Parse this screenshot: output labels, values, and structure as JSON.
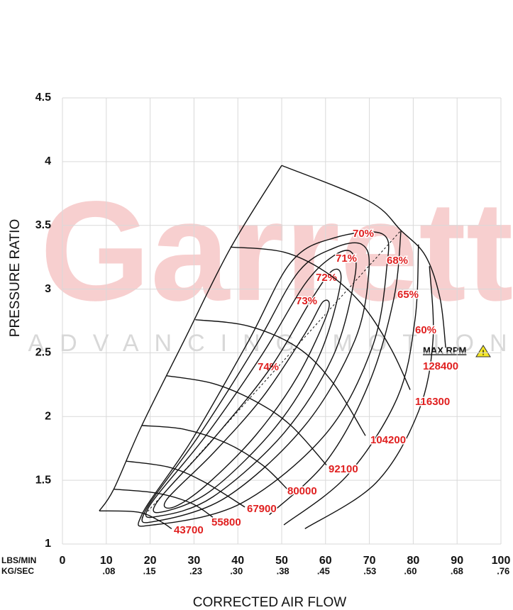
{
  "watermark": {
    "brand": "Garrett",
    "tagline": "ADVANCING MOTION"
  },
  "chart_data": {
    "type": "compressor_map",
    "x_label": "CORRECTED AIR FLOW",
    "y_label": "PRESSURE RATIO",
    "x_unit_label": "LBS/MIN",
    "x2_unit_label": "KG/SEC",
    "max_rpm_label": "MAX RPM",
    "xlim": [
      0,
      100
    ],
    "xticks": [
      0,
      10,
      20,
      30,
      40,
      50,
      60,
      70,
      80,
      90,
      100
    ],
    "x2lim": [
      0,
      0.756
    ],
    "x2ticks": [
      {
        "value": 0.08,
        "label": ".08"
      },
      {
        "value": 0.15,
        "label": ".15"
      },
      {
        "value": 0.23,
        "label": ".23"
      },
      {
        "value": 0.3,
        "label": ".30"
      },
      {
        "value": 0.38,
        "label": ".38"
      },
      {
        "value": 0.45,
        "label": ".45"
      },
      {
        "value": 0.53,
        "label": ".53"
      },
      {
        "value": 0.6,
        "label": ".60"
      },
      {
        "value": 0.68,
        "label": ".68"
      },
      {
        "value": 0.76,
        "label": ".76"
      }
    ],
    "ylim": [
      1,
      4.5
    ],
    "yticks": [
      1,
      1.5,
      2,
      2.5,
      3,
      3.5,
      4,
      4.5
    ],
    "grid": true,
    "line_color": "#111111",
    "label_color": "#e02020",
    "surge_line": {
      "x": [
        8.4,
        11.7,
        18.1,
        27.8,
        38.3,
        50.0
      ],
      "values": [
        1.26,
        1.43,
        1.93,
        2.6,
        3.32,
        3.97
      ]
    },
    "speed_lines": [
      {
        "name": "43700",
        "x": [
          8.4,
          17.3,
          22.2,
          24.9
        ],
        "values": [
          1.26,
          1.25,
          1.18,
          1.12
        ]
      },
      {
        "name": "55800",
        "x": [
          11.7,
          21.4,
          29.4,
          34.3
        ],
        "values": [
          1.43,
          1.4,
          1.32,
          1.21
        ]
      },
      {
        "name": "67900",
        "x": [
          14.6,
          24.6,
          32.7,
          41.6
        ],
        "values": [
          1.65,
          1.6,
          1.48,
          1.29
        ]
      },
      {
        "name": "80000",
        "x": [
          18.1,
          27.8,
          37.5,
          45.6,
          51.3
        ],
        "values": [
          1.93,
          1.9,
          1.79,
          1.62,
          1.43
        ]
      },
      {
        "name": "92100",
        "x": [
          23.8,
          34.3,
          44.0,
          52.1,
          60.2
        ],
        "values": [
          2.32,
          2.26,
          2.12,
          1.93,
          1.62
        ]
      },
      {
        "name": "104200",
        "x": [
          30.3,
          42.4,
          53.7,
          61.8,
          69.1
        ],
        "values": [
          2.76,
          2.71,
          2.54,
          2.26,
          1.85
        ]
      },
      {
        "name": "116300",
        "x": [
          38.3,
          50.5,
          60.2,
          68.3,
          74.8,
          79.3
        ],
        "values": [
          3.33,
          3.29,
          3.13,
          2.88,
          2.54,
          2.21
        ]
      },
      {
        "name": "128400",
        "x": [
          50.0,
          69.9,
          77.2,
          82.8,
          86.1,
          87.4
        ],
        "values": [
          3.97,
          3.69,
          3.46,
          3.26,
          2.93,
          2.54
        ]
      }
    ],
    "efficiency_islands": [
      {
        "name": "74%",
        "closed": true,
        "x": [
          23.8,
          34.3,
          45.6,
          55.3,
          59.4,
          60.5,
          53.7,
          44.0,
          32.7,
          25.4
        ],
        "values": [
          1.35,
          1.71,
          2.15,
          2.65,
          2.9,
          2.82,
          2.32,
          1.85,
          1.46,
          1.29
        ]
      },
      {
        "name": "73%",
        "closed": true,
        "x": [
          21.4,
          34.3,
          47.2,
          57.0,
          61.8,
          63.4,
          58.6,
          48.9,
          34.3,
          23.8
        ],
        "values": [
          1.32,
          1.82,
          2.37,
          2.93,
          3.15,
          3.04,
          2.48,
          1.93,
          1.43,
          1.26
        ]
      },
      {
        "name": "72%",
        "closed": true,
        "x": [
          19.7,
          32.7,
          45.6,
          55.3,
          61.8,
          65.9,
          66.7,
          61.8,
          50.5,
          34.3,
          22.2
        ],
        "values": [
          1.29,
          1.85,
          2.49,
          3.04,
          3.26,
          3.29,
          3.1,
          2.48,
          1.87,
          1.37,
          1.22
        ]
      },
      {
        "name": "71%",
        "closed": true,
        "x": [
          18.9,
          31.1,
          44.0,
          53.7,
          61.8,
          68.3,
          69.9,
          66.7,
          55.3,
          37.5,
          21.4
        ],
        "values": [
          1.26,
          1.85,
          2.55,
          3.13,
          3.32,
          3.35,
          3.15,
          2.6,
          1.93,
          1.37,
          1.18
        ]
      },
      {
        "name": "70%",
        "closed": true,
        "x": [
          18.1,
          29.4,
          42.4,
          52.1,
          61.8,
          73.1,
          73.9,
          70.6,
          60.2,
          40.8,
          20.7
        ],
        "values": [
          1.23,
          1.81,
          2.59,
          3.21,
          3.4,
          3.43,
          3.15,
          2.54,
          1.87,
          1.32,
          1.15
        ]
      },
      {
        "name": "68%",
        "closed": false,
        "x": [
          77.2,
          75.6,
          69.9,
          60.2,
          47.2
        ],
        "values": [
          3.46,
          2.93,
          2.26,
          1.65,
          1.23
        ]
      },
      {
        "name": "65%",
        "closed": false,
        "x": [
          81.2,
          80.4,
          76.4,
          65.0,
          50.5
        ],
        "values": [
          3.35,
          2.76,
          2.15,
          1.54,
          1.15
        ]
      },
      {
        "name": "60%",
        "closed": false,
        "x": [
          83.7,
          84.5,
          81.2,
          71.5,
          55.3
        ],
        "values": [
          3.18,
          2.6,
          2.04,
          1.48,
          1.12
        ]
      }
    ]
  }
}
